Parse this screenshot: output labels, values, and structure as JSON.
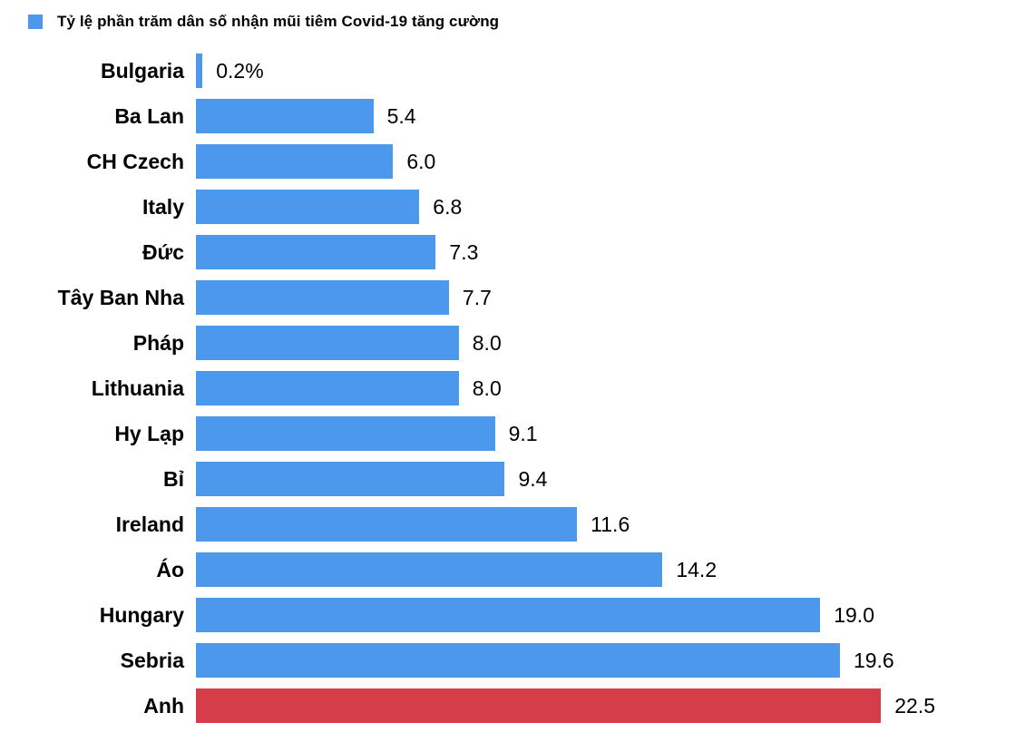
{
  "legend": {
    "label": "Tỷ lệ phần trăm dân số nhận mũi tiêm Covid-19 tăng cường"
  },
  "colors": {
    "bar_default": "#4b98ec",
    "bar_highlight": "#d53e49",
    "text": "#000000",
    "background": "#ffffff"
  },
  "chart_data": {
    "type": "bar",
    "orientation": "horizontal",
    "title": "Tỷ lệ phần trăm dân số nhận mũi tiêm Covid-19 tăng cường",
    "categories": [
      "Bulgaria",
      "Ba Lan",
      "CH Czech",
      "Italy",
      "Đức",
      "Tây Ban Nha",
      "Pháp",
      "Lithuania",
      "Hy Lạp",
      "Bỉ",
      "Ireland",
      "Áo",
      "Hungary",
      "Sebria",
      "Anh"
    ],
    "values": [
      0.2,
      5.4,
      6.0,
      6.8,
      7.3,
      7.7,
      8.0,
      8.0,
      9.1,
      9.4,
      11.6,
      14.2,
      19.0,
      19.6,
      22.5
    ],
    "value_labels": [
      "0.2%",
      "5.4",
      "6.0",
      "6.8",
      "7.3",
      "7.7",
      "8.0",
      "8.0",
      "9.1",
      "9.4",
      "11.6",
      "14.2",
      "19.0",
      "19.6",
      "22.5"
    ],
    "highlight_category": "Anh",
    "xlim": [
      0,
      22.5
    ],
    "grid": false,
    "legend_position": "top-left",
    "xlabel": "",
    "ylabel": ""
  }
}
